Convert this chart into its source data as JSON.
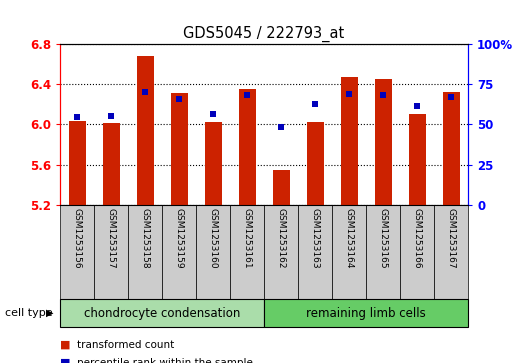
{
  "title": "GDS5045 / 222793_at",
  "samples": [
    "GSM1253156",
    "GSM1253157",
    "GSM1253158",
    "GSM1253159",
    "GSM1253160",
    "GSM1253161",
    "GSM1253162",
    "GSM1253163",
    "GSM1253164",
    "GSM1253165",
    "GSM1253166",
    "GSM1253167"
  ],
  "red_values": [
    6.03,
    6.01,
    6.68,
    6.31,
    6.02,
    6.35,
    5.55,
    6.02,
    6.47,
    6.45,
    6.1,
    6.32
  ],
  "blue_values": [
    6.07,
    6.08,
    6.32,
    6.25,
    6.1,
    6.29,
    5.97,
    6.2,
    6.3,
    6.29,
    6.18,
    6.27
  ],
  "ymin": 5.2,
  "ymax": 6.8,
  "yticks_left": [
    5.2,
    5.6,
    6.0,
    6.4,
    6.8
  ],
  "yticks_right": [
    0,
    25,
    50,
    75,
    100
  ],
  "group1_label": "chondrocyte condensation",
  "group2_label": "remaining limb cells",
  "group1_count": 6,
  "n_total": 12,
  "cell_type_label": "cell type",
  "legend1": "transformed count",
  "legend2": "percentile rank within the sample",
  "bar_color": "#CC2200",
  "dot_color": "#0000BB",
  "sample_box_color": "#CCCCCC",
  "group1_color": "#AADDAA",
  "group2_color": "#66CC66",
  "plot_bg": "#FFFFFF"
}
